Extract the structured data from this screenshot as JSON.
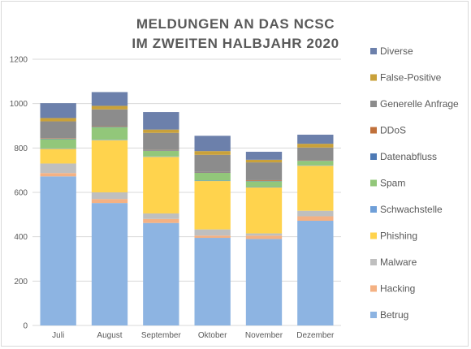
{
  "chart_data": {
    "type": "bar",
    "stacked": true,
    "title_lines": [
      "MELDUNGEN AN DAS NCSC",
      "IM ZWEITEN HALBJAHR 2020"
    ],
    "xlabel": "",
    "ylabel": "",
    "categories": [
      "Juli",
      "August",
      "September",
      "Oktober",
      "November",
      "Dezember"
    ],
    "ylim": [
      0,
      1200
    ],
    "yticks": [
      0,
      200,
      400,
      600,
      800,
      1000,
      1200
    ],
    "grid": true,
    "legend_position": "right",
    "series": [
      {
        "name": "Betrug",
        "color": "#8db4e2",
        "values": [
          672,
          552,
          462,
          395,
          390,
          472
        ]
      },
      {
        "name": "Hacking",
        "color": "#f4b183",
        "values": [
          15,
          18,
          18,
          10,
          15,
          20
        ]
      },
      {
        "name": "Malware",
        "color": "#bfbfbf",
        "values": [
          43,
          30,
          25,
          28,
          10,
          25
        ]
      },
      {
        "name": "Phishing",
        "color": "#ffd34d",
        "values": [
          66,
          235,
          255,
          218,
          207,
          203
        ]
      },
      {
        "name": "Schwachstelle",
        "color": "#6f9fd8",
        "values": [
          2,
          2,
          2,
          2,
          2,
          2
        ]
      },
      {
        "name": "Spam",
        "color": "#92c77a",
        "values": [
          42,
          57,
          25,
          35,
          26,
          20
        ]
      },
      {
        "name": "Datenabfluss",
        "color": "#4e7ab5",
        "values": [
          2,
          2,
          2,
          2,
          2,
          2
        ]
      },
      {
        "name": "DDoS",
        "color": "#c0703a",
        "values": [
          2,
          2,
          2,
          2,
          3,
          2
        ]
      },
      {
        "name": "Generelle Anfrage",
        "color": "#8c8c8c",
        "values": [
          76,
          76,
          77,
          77,
          80,
          56
        ]
      },
      {
        "name": "False-Positive",
        "color": "#c9a13a",
        "values": [
          15,
          16,
          15,
          17,
          12,
          17
        ]
      },
      {
        "name": "Diverse",
        "color": "#6c80ab",
        "values": [
          67,
          62,
          79,
          69,
          36,
          41
        ]
      }
    ]
  }
}
